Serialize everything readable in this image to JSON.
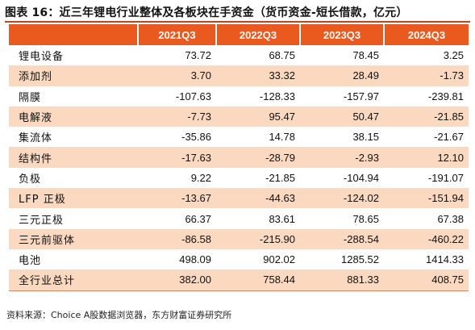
{
  "title": "图表 16：近三年锂电行业整体及各板块在手资金（货币资金-短长借款，亿元）",
  "headers": [
    "",
    "2021Q3",
    "2022Q3",
    "2023Q3",
    "2024Q3"
  ],
  "rows": [
    {
      "label": "锂电设备",
      "values": [
        "73.72",
        "68.75",
        "78.45",
        "3.25"
      ]
    },
    {
      "label": "添加剂",
      "values": [
        "3.70",
        "33.32",
        "28.49",
        "-1.73"
      ]
    },
    {
      "label": "隔膜",
      "values": [
        "-107.63",
        "-128.33",
        "-157.97",
        "-239.81"
      ]
    },
    {
      "label": "电解液",
      "values": [
        "-7.73",
        "95.47",
        "50.47",
        "-21.85"
      ]
    },
    {
      "label": "集流体",
      "values": [
        "-35.86",
        "14.78",
        "38.15",
        "-21.67"
      ]
    },
    {
      "label": "结构件",
      "values": [
        "-17.63",
        "-28.79",
        "-2.93",
        "12.10"
      ]
    },
    {
      "label": "负极",
      "values": [
        "9.22",
        "-21.85",
        "-104.94",
        "-191.07"
      ]
    },
    {
      "label": "LFP 正极",
      "values": [
        "-13.67",
        "-44.63",
        "-124.02",
        "-151.94"
      ]
    },
    {
      "label": "三元正极",
      "values": [
        "66.37",
        "83.61",
        "78.65",
        "67.38"
      ]
    },
    {
      "label": "三元前驱体",
      "values": [
        "-86.58",
        "-215.90",
        "-288.54",
        "-460.22"
      ]
    },
    {
      "label": "电池",
      "values": [
        "498.09",
        "902.02",
        "1285.52",
        "1414.33"
      ]
    },
    {
      "label": "全行业总计",
      "values": [
        "382.00",
        "758.44",
        "881.33",
        "408.75"
      ]
    }
  ],
  "source": "资料来源：Choice A股数据浏览器，东方财富证券研究所"
}
